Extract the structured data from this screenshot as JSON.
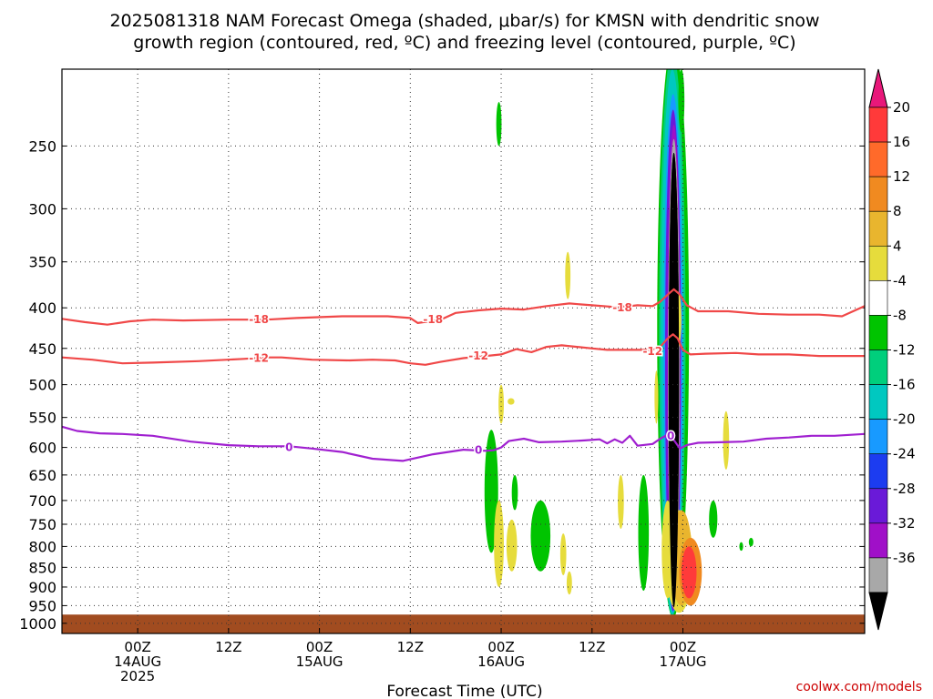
{
  "chart_data": {
    "type": "contour",
    "title_lines": [
      "2025081318 NAM Forecast Omega (shaded, μbar/s) for KMSN with dendritic snow",
      "growth region (contoured, red, ºC) and freezing level (contoured, purple, ºC)"
    ],
    "xlabel": "Forecast Time (UTC)",
    "credit": "coolwx.com/models",
    "y_axis": {
      "scale": "log",
      "ylim": [
        1030,
        200
      ],
      "ticks": [
        250,
        300,
        350,
        400,
        450,
        500,
        550,
        600,
        650,
        700,
        750,
        800,
        850,
        900,
        950,
        1000
      ],
      "grid": "dotted"
    },
    "x_axis": {
      "xlim": [
        -10,
        96
      ],
      "ticks": [
        {
          "hour": 0,
          "lines": [
            "00Z",
            "14AUG",
            "2025"
          ]
        },
        {
          "hour": 12,
          "lines": [
            "12Z"
          ]
        },
        {
          "hour": 24,
          "lines": [
            "00Z",
            "15AUG"
          ]
        },
        {
          "hour": 36,
          "lines": [
            "12Z"
          ]
        },
        {
          "hour": 48,
          "lines": [
            "00Z",
            "16AUG"
          ]
        },
        {
          "hour": 60,
          "lines": [
            "12Z"
          ]
        },
        {
          "hour": 72,
          "lines": [
            "00Z",
            "17AUG"
          ]
        }
      ],
      "grid": "dotted"
    },
    "colorbar": {
      "ticks": [
        "20",
        "16",
        "12",
        "8",
        "4",
        "-4",
        "-8",
        "-12",
        "-16",
        "-20",
        "-24",
        "-28",
        "-32",
        "-36"
      ],
      "colors": [
        "#ff3a3a",
        "#ff6a2a",
        "#f08a20",
        "#e9b52e",
        "#e6dc3c",
        "#ffffff",
        "#00c400",
        "#00cf7c",
        "#00c8c0",
        "#189aff",
        "#1c3cf0",
        "#6a1ad8",
        "#a010c8",
        "#a8a8a8",
        "#000000"
      ],
      "top_color": "#e8187a"
    },
    "surface_color": "#a14c20",
    "contours": [
      {
        "name": "-18",
        "color": "#f04848",
        "points": [
          [
            -10,
            413
          ],
          [
            -7,
            417
          ],
          [
            -4,
            420
          ],
          [
            -1,
            416
          ],
          [
            2,
            414
          ],
          [
            6,
            415
          ],
          [
            12,
            414
          ],
          [
            17,
            414
          ],
          [
            21,
            412
          ],
          [
            27,
            410
          ],
          [
            33,
            410
          ],
          [
            36,
            412
          ],
          [
            37,
            418
          ],
          [
            40,
            414
          ],
          [
            42,
            406
          ],
          [
            45,
            403
          ],
          [
            48,
            401
          ],
          [
            51,
            402
          ],
          [
            54,
            398
          ],
          [
            57,
            395
          ],
          [
            60,
            397
          ],
          [
            63,
            399
          ],
          [
            65,
            398
          ],
          [
            66,
            397
          ],
          [
            68,
            398
          ],
          [
            69,
            393
          ],
          [
            70,
            385
          ],
          [
            70.8,
            379
          ],
          [
            71.6,
            385
          ],
          [
            72.5,
            397
          ],
          [
            74,
            404
          ],
          [
            78,
            404
          ],
          [
            82,
            407
          ],
          [
            86,
            408
          ],
          [
            90,
            408
          ],
          [
            93,
            410
          ],
          [
            94,
            406
          ],
          [
            96,
            398
          ]
        ],
        "labels": [
          {
            "x": 16,
            "y": 414
          },
          {
            "x": 39,
            "y": 414
          },
          {
            "x": 64,
            "y": 400
          }
        ]
      },
      {
        "name": "-12",
        "color": "#f04848",
        "points": [
          [
            -10,
            462
          ],
          [
            -6,
            465
          ],
          [
            -2,
            470
          ],
          [
            2,
            469
          ],
          [
            8,
            467
          ],
          [
            14,
            464
          ],
          [
            17,
            462
          ],
          [
            19,
            462
          ],
          [
            23,
            465
          ],
          [
            28,
            466
          ],
          [
            31,
            465
          ],
          [
            34,
            466
          ],
          [
            36,
            470
          ],
          [
            38,
            472
          ],
          [
            40,
            468
          ],
          [
            43,
            463
          ],
          [
            46,
            460
          ],
          [
            48,
            458
          ],
          [
            50,
            451
          ],
          [
            52,
            455
          ],
          [
            54,
            448
          ],
          [
            56,
            446
          ],
          [
            58,
            448
          ],
          [
            60,
            450
          ],
          [
            62,
            452
          ],
          [
            64,
            452
          ],
          [
            66,
            452
          ],
          [
            68,
            452
          ],
          [
            69,
            448
          ],
          [
            70,
            437
          ],
          [
            70.7,
            432
          ],
          [
            71.3,
            437
          ],
          [
            72,
            452
          ],
          [
            73,
            458
          ],
          [
            75,
            457
          ],
          [
            79,
            456
          ],
          [
            82,
            458
          ],
          [
            86,
            458
          ],
          [
            90,
            460
          ],
          [
            96,
            460
          ]
        ],
        "labels": [
          {
            "x": 16,
            "y": 463
          },
          {
            "x": 45,
            "y": 460
          },
          {
            "x": 68,
            "y": 454
          }
        ]
      },
      {
        "name": "0",
        "color": "#a020d0",
        "points": [
          [
            -10,
            565
          ],
          [
            -8,
            572
          ],
          [
            -5,
            576
          ],
          [
            -2,
            577
          ],
          [
            2,
            580
          ],
          [
            7,
            590
          ],
          [
            12,
            596
          ],
          [
            16,
            598
          ],
          [
            20,
            598
          ],
          [
            23,
            602
          ],
          [
            27,
            608
          ],
          [
            31,
            620
          ],
          [
            35,
            624
          ],
          [
            39,
            612
          ],
          [
            43,
            604
          ],
          [
            46,
            606
          ],
          [
            47,
            605
          ],
          [
            48,
            600
          ],
          [
            49,
            589
          ],
          [
            51,
            585
          ],
          [
            53,
            591
          ],
          [
            56,
            590
          ],
          [
            59,
            588
          ],
          [
            61,
            586
          ],
          [
            62,
            593
          ],
          [
            63,
            586
          ],
          [
            64,
            592
          ],
          [
            65,
            580
          ],
          [
            66,
            597
          ],
          [
            68,
            594
          ],
          [
            69,
            585
          ],
          [
            70,
            578
          ],
          [
            70.9,
            589
          ],
          [
            71.6,
            602
          ],
          [
            72.5,
            596
          ],
          [
            74,
            592
          ],
          [
            77,
            591
          ],
          [
            80,
            590
          ],
          [
            83,
            585
          ],
          [
            86,
            583
          ],
          [
            89,
            580
          ],
          [
            92,
            580
          ],
          [
            96,
            577
          ]
        ],
        "labels": [
          {
            "x": 20,
            "y": 600
          },
          {
            "x": 45,
            "y": 605
          },
          {
            "x": 70.4,
            "y": 580
          }
        ]
      }
    ]
  }
}
